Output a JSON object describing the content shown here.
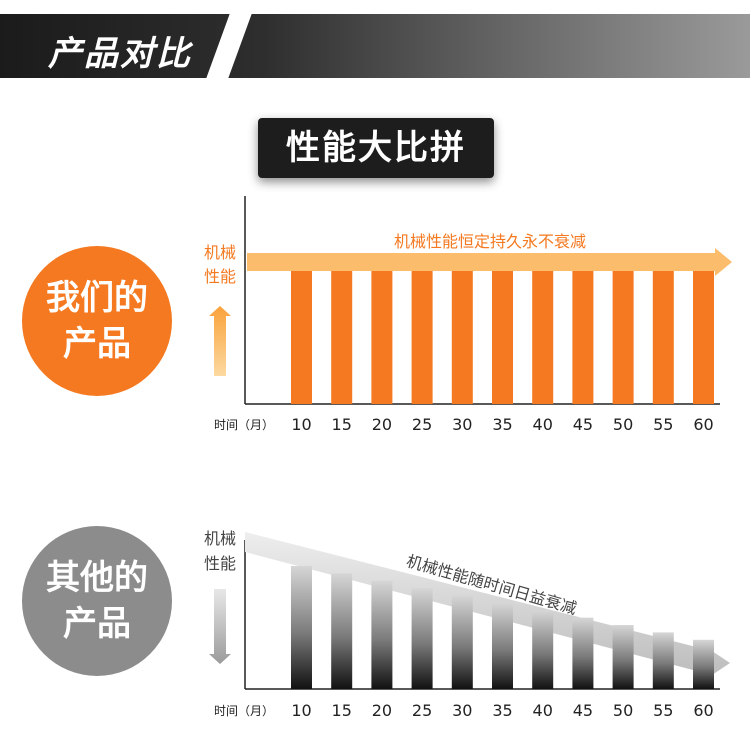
{
  "header": {
    "title": "产品对比"
  },
  "subtitle": "性能大比拼",
  "colors": {
    "orange": "#f47920",
    "orange_light": "#fbb864",
    "gray": "#8c8c8c",
    "dark": "#1d1d1d"
  },
  "chart_data": [
    {
      "type": "bar",
      "group_label": [
        "我们的",
        "产品"
      ],
      "ylabel": [
        "机械",
        "性能"
      ],
      "xlabel": "时间（月）",
      "categories": [
        "10",
        "15",
        "20",
        "25",
        "30",
        "35",
        "40",
        "45",
        "50",
        "55",
        "60"
      ],
      "values": [
        100,
        100,
        100,
        100,
        100,
        100,
        100,
        100,
        100,
        100,
        100
      ],
      "trend_label": "机械性能恒定持久永不衰减",
      "trend": "constant",
      "ylim": [
        0,
        100
      ]
    },
    {
      "type": "bar",
      "group_label": [
        "其他的",
        "产品"
      ],
      "ylabel": [
        "机械",
        "性能"
      ],
      "xlabel": "时间（月）",
      "categories": [
        "10",
        "15",
        "20",
        "25",
        "30",
        "35",
        "40",
        "45",
        "50",
        "55",
        "60"
      ],
      "values": [
        100,
        94,
        88,
        82,
        76,
        70,
        64,
        58,
        52,
        46,
        40
      ],
      "trend_label": "机械性能随时间日益衰减",
      "trend": "decreasing",
      "ylim": [
        0,
        100
      ]
    }
  ]
}
